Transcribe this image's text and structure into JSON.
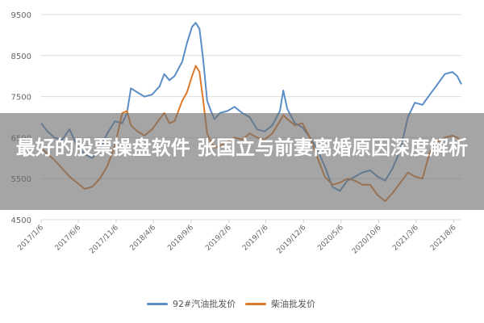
{
  "chart_data": {
    "type": "line",
    "title": "",
    "xlabel": "",
    "ylabel": "",
    "ylim": [
      4500,
      9500
    ],
    "yticks": [
      4500,
      5500,
      6500,
      7500,
      8500,
      9500
    ],
    "ytick_labels": [
      "4500",
      "5500",
      "6500",
      "7500",
      "8500",
      "9500"
    ],
    "xlim": [
      "2017-01-06",
      "2021-09-06"
    ],
    "xtick_labels": [
      {
        "date": "2017-01-06",
        "label": "2017/1/6"
      },
      {
        "date": "2017-06-06",
        "label": "2017/6/6"
      },
      {
        "date": "2017-11-06",
        "label": "2017/11/6"
      },
      {
        "date": "2018-04-06",
        "label": "2018/4/6"
      },
      {
        "date": "2018-09-06",
        "label": "2018/9/6"
      },
      {
        "date": "2019-02-06",
        "label": "2019/2/6"
      },
      {
        "date": "2019-07-06",
        "label": "2019/7/6"
      },
      {
        "date": "2019-12-06",
        "label": "2019/12/6"
      },
      {
        "date": "2020-05-06",
        "label": "2020/5/6"
      },
      {
        "date": "2020-10-06",
        "label": "2020/10/6"
      },
      {
        "date": "2021-03-06",
        "label": "2021/3/6"
      },
      {
        "date": "2021-08-06",
        "label": "2021/8/6"
      }
    ],
    "grid": "horizontal",
    "legend_position": "bottom",
    "series": [
      {
        "name": "92#汽油批发价",
        "color": "#5b8ec6",
        "points": [
          [
            "2017-01-06",
            6850
          ],
          [
            "2017-02-01",
            6650
          ],
          [
            "2017-03-01",
            6500
          ],
          [
            "2017-04-01",
            6450
          ],
          [
            "2017-05-01",
            6700
          ],
          [
            "2017-06-01",
            6300
          ],
          [
            "2017-07-01",
            6100
          ],
          [
            "2017-08-01",
            6000
          ],
          [
            "2017-09-01",
            6200
          ],
          [
            "2017-10-01",
            6600
          ],
          [
            "2017-11-01",
            6900
          ],
          [
            "2017-12-01",
            6850
          ],
          [
            "2017-12-20",
            7100
          ],
          [
            "2018-01-05",
            7700
          ],
          [
            "2018-02-01",
            7600
          ],
          [
            "2018-03-01",
            7500
          ],
          [
            "2018-04-01",
            7550
          ],
          [
            "2018-05-01",
            7750
          ],
          [
            "2018-05-20",
            8050
          ],
          [
            "2018-06-10",
            7900
          ],
          [
            "2018-07-01",
            8000
          ],
          [
            "2018-08-01",
            8350
          ],
          [
            "2018-08-20",
            8800
          ],
          [
            "2018-09-10",
            9200
          ],
          [
            "2018-09-25",
            9300
          ],
          [
            "2018-10-10",
            9150
          ],
          [
            "2018-10-25",
            8400
          ],
          [
            "2018-11-10",
            7400
          ],
          [
            "2018-11-25",
            7150
          ],
          [
            "2018-12-10",
            6950
          ],
          [
            "2019-01-01",
            7100
          ],
          [
            "2019-02-01",
            7150
          ],
          [
            "2019-03-01",
            7250
          ],
          [
            "2019-04-01",
            7100
          ],
          [
            "2019-05-01",
            7000
          ],
          [
            "2019-06-01",
            6700
          ],
          [
            "2019-07-01",
            6650
          ],
          [
            "2019-08-01",
            6800
          ],
          [
            "2019-09-01",
            7150
          ],
          [
            "2019-09-15",
            7650
          ],
          [
            "2019-10-01",
            7200
          ],
          [
            "2019-11-01",
            6850
          ],
          [
            "2019-12-01",
            6750
          ],
          [
            "2020-01-01",
            6500
          ],
          [
            "2020-02-01",
            6200
          ],
          [
            "2020-03-01",
            5800
          ],
          [
            "2020-04-01",
            5300
          ],
          [
            "2020-05-01",
            5200
          ],
          [
            "2020-06-01",
            5450
          ],
          [
            "2020-07-01",
            5550
          ],
          [
            "2020-08-01",
            5650
          ],
          [
            "2020-09-01",
            5700
          ],
          [
            "2020-10-01",
            5550
          ],
          [
            "2020-11-01",
            5450
          ],
          [
            "2020-12-01",
            5750
          ],
          [
            "2021-01-01",
            6200
          ],
          [
            "2021-02-01",
            7000
          ],
          [
            "2021-03-01",
            7350
          ],
          [
            "2021-04-01",
            7300
          ],
          [
            "2021-05-01",
            7550
          ],
          [
            "2021-06-01",
            7800
          ],
          [
            "2021-07-01",
            8050
          ],
          [
            "2021-08-01",
            8100
          ],
          [
            "2021-08-20",
            8000
          ],
          [
            "2021-09-06",
            7800
          ]
        ]
      },
      {
        "name": "柴油批发价",
        "color": "#dd7a2a",
        "points": [
          [
            "2017-01-06",
            6250
          ],
          [
            "2017-02-01",
            6100
          ],
          [
            "2017-03-01",
            5950
          ],
          [
            "2017-04-01",
            5750
          ],
          [
            "2017-05-01",
            5550
          ],
          [
            "2017-06-01",
            5400
          ],
          [
            "2017-07-01",
            5250
          ],
          [
            "2017-08-01",
            5300
          ],
          [
            "2017-09-01",
            5500
          ],
          [
            "2017-10-01",
            5800
          ],
          [
            "2017-11-01",
            6300
          ],
          [
            "2017-12-01",
            7100
          ],
          [
            "2017-12-20",
            7150
          ],
          [
            "2018-01-05",
            6800
          ],
          [
            "2018-02-01",
            6650
          ],
          [
            "2018-03-01",
            6550
          ],
          [
            "2018-04-01",
            6700
          ],
          [
            "2018-05-01",
            6950
          ],
          [
            "2018-05-20",
            7100
          ],
          [
            "2018-06-10",
            6850
          ],
          [
            "2018-07-01",
            6900
          ],
          [
            "2018-08-01",
            7400
          ],
          [
            "2018-08-20",
            7600
          ],
          [
            "2018-09-10",
            8000
          ],
          [
            "2018-09-25",
            8250
          ],
          [
            "2018-10-10",
            8100
          ],
          [
            "2018-10-25",
            7400
          ],
          [
            "2018-11-10",
            6600
          ],
          [
            "2018-11-25",
            6400
          ],
          [
            "2018-12-10",
            6250
          ],
          [
            "2019-01-01",
            6300
          ],
          [
            "2019-02-01",
            6400
          ],
          [
            "2019-03-01",
            6500
          ],
          [
            "2019-04-01",
            6450
          ],
          [
            "2019-05-01",
            6600
          ],
          [
            "2019-06-01",
            6500
          ],
          [
            "2019-07-01",
            6450
          ],
          [
            "2019-08-01",
            6600
          ],
          [
            "2019-09-01",
            6900
          ],
          [
            "2019-09-15",
            7050
          ],
          [
            "2019-10-01",
            6950
          ],
          [
            "2019-11-01",
            6800
          ],
          [
            "2019-12-01",
            6850
          ],
          [
            "2020-01-01",
            6500
          ],
          [
            "2020-02-01",
            6000
          ],
          [
            "2020-03-01",
            5550
          ],
          [
            "2020-04-01",
            5350
          ],
          [
            "2020-05-01",
            5400
          ],
          [
            "2020-06-01",
            5500
          ],
          [
            "2020-07-01",
            5450
          ],
          [
            "2020-08-01",
            5350
          ],
          [
            "2020-09-01",
            5350
          ],
          [
            "2020-10-01",
            5100
          ],
          [
            "2020-11-01",
            4950
          ],
          [
            "2020-12-01",
            5150
          ],
          [
            "2021-01-01",
            5400
          ],
          [
            "2021-02-01",
            5650
          ],
          [
            "2021-03-01",
            5550
          ],
          [
            "2021-04-01",
            5500
          ],
          [
            "2021-05-01",
            6150
          ],
          [
            "2021-06-01",
            6400
          ],
          [
            "2021-07-01",
            6500
          ],
          [
            "2021-08-01",
            6550
          ],
          [
            "2021-08-20",
            6500
          ],
          [
            "2021-09-06",
            6400
          ]
        ]
      }
    ]
  },
  "overlay": {
    "title": "最好的股票操盘软件 张国立与前妻离婚原因深度解析"
  }
}
